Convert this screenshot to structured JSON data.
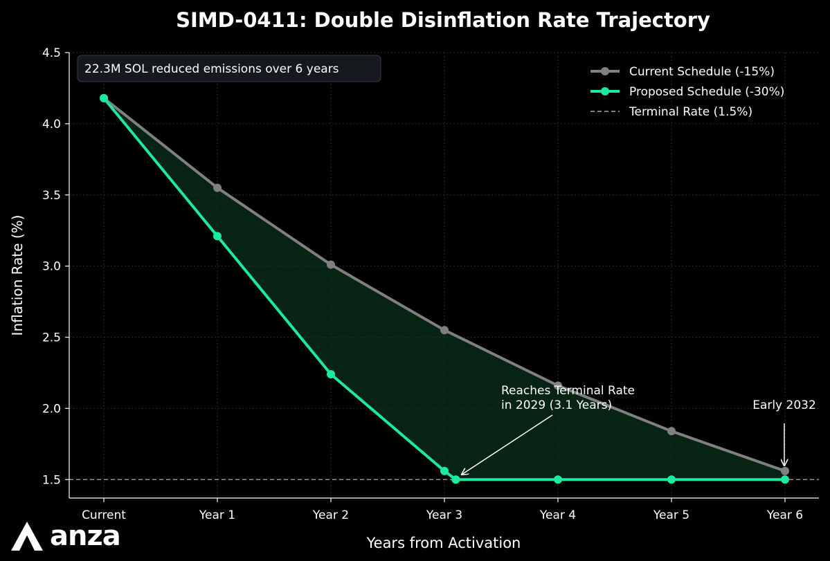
{
  "chart_data": {
    "type": "line",
    "title": "SIMD-0411: Double Disinflation Rate Trajectory",
    "xlabel": "Years from Activation",
    "ylabel": "Inflation Rate (%)",
    "categories": [
      "Current",
      "Year 1",
      "Year 2",
      "Year 3",
      "Year 4",
      "Year 5",
      "Year 6"
    ],
    "ylim": [
      1.37,
      4.5
    ],
    "yticks": [
      "1.5",
      "2.0",
      "2.5",
      "3.0",
      "3.5",
      "4.0",
      "4.5"
    ],
    "grid": true,
    "legend_position": "top-right",
    "series": [
      {
        "name": "Current Schedule (-15%)",
        "color": "#808080",
        "x": [
          0,
          1,
          2,
          3,
          4,
          5,
          6
        ],
        "values": [
          4.18,
          3.55,
          3.01,
          2.55,
          2.16,
          1.84,
          1.56
        ]
      },
      {
        "name": "Proposed Schedule (-30%)",
        "color": "#1de9a0",
        "x": [
          0,
          1,
          2,
          3,
          3.1,
          4,
          5,
          6
        ],
        "values": [
          4.18,
          3.21,
          2.24,
          1.56,
          1.5,
          1.5,
          1.5,
          1.5
        ]
      }
    ],
    "terminal_line": {
      "name": "Terminal Rate (1.5%)",
      "value": 1.5,
      "color": "#aaaaaa"
    },
    "info_box": "22.3M SOL reduced emissions over 6 years",
    "annotations": [
      {
        "line1": "Reaches Terminal Rate",
        "line2": "in 2029 (3.1 Years)"
      },
      {
        "line1": "Early 2032"
      }
    ]
  },
  "logo": {
    "text": "anza"
  }
}
